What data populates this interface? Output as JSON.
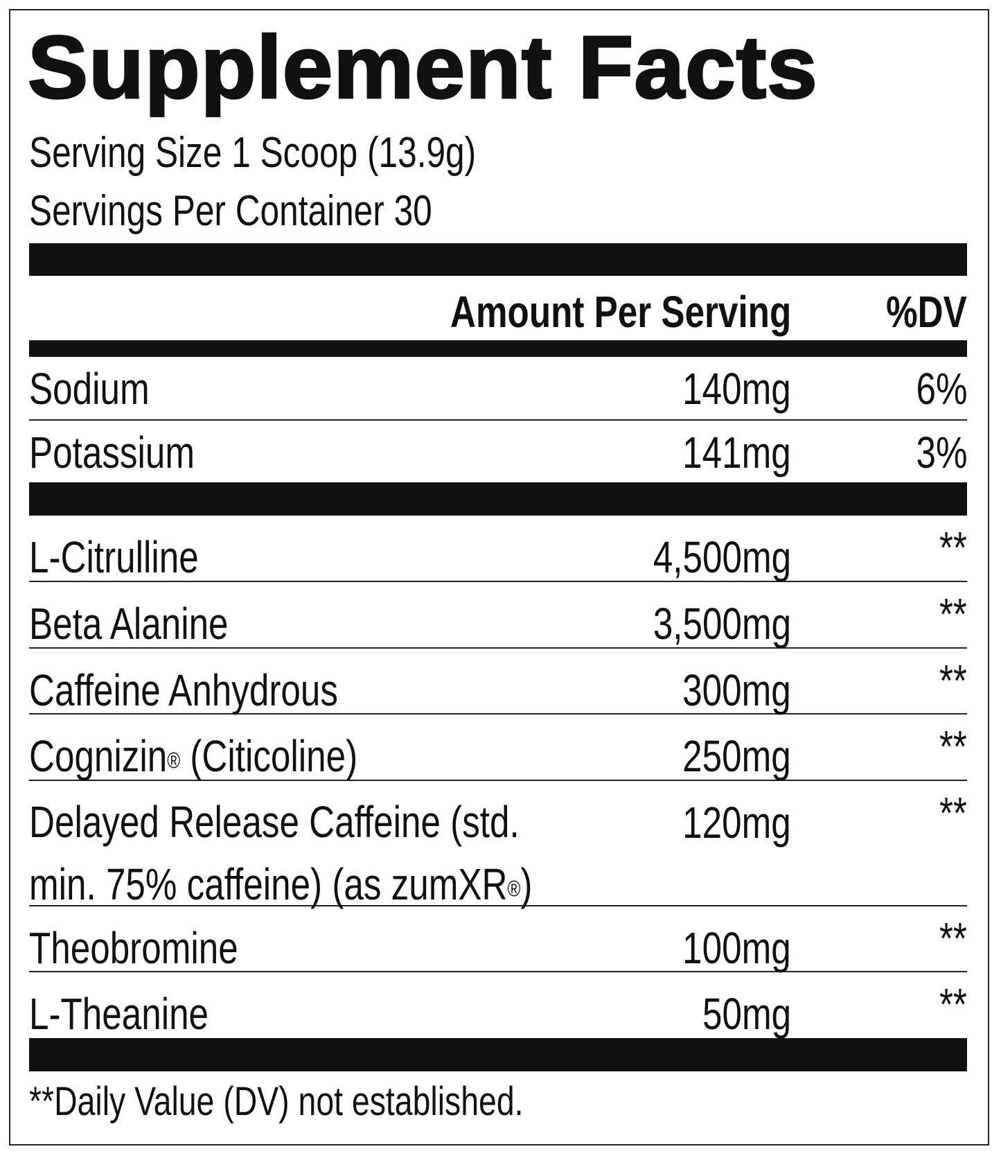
{
  "title": "Supplement Facts",
  "serving_size": "Serving Size 1 Scoop (13.9g)",
  "servings_per_container": "Servings Per Container 30",
  "header": {
    "amount": "Amount Per Serving",
    "dv": "%DV"
  },
  "minerals": [
    {
      "name": "Sodium",
      "amount": "140mg",
      "dv": "6%"
    },
    {
      "name": "Potassium",
      "amount": "141mg",
      "dv": "3%"
    }
  ],
  "ingredients": [
    {
      "name": "L-Citrulline",
      "amount": "4,500mg",
      "dv": "**"
    },
    {
      "name": "Beta Alanine",
      "amount": "3,500mg",
      "dv": "**"
    },
    {
      "name": "Caffeine Anhydrous",
      "amount": "300mg",
      "dv": "**"
    },
    {
      "name": "Cognizin",
      "name_mark": "®",
      "name_suffix": " (Citicoline)",
      "amount": "250mg",
      "dv": "**"
    },
    {
      "name": "Delayed Release Caffeine (std.",
      "name_line2": "min. 75% caffeine) (as zumXR",
      "name_mark": "®",
      "name_suffix": ")",
      "amount": "120mg",
      "dv": "**"
    },
    {
      "name": "Theobromine",
      "amount": "100mg",
      "dv": "**"
    },
    {
      "name": "L-Theanine",
      "amount": "50mg",
      "dv": "**"
    }
  ],
  "footnote": "**Daily Value (DV) not established."
}
